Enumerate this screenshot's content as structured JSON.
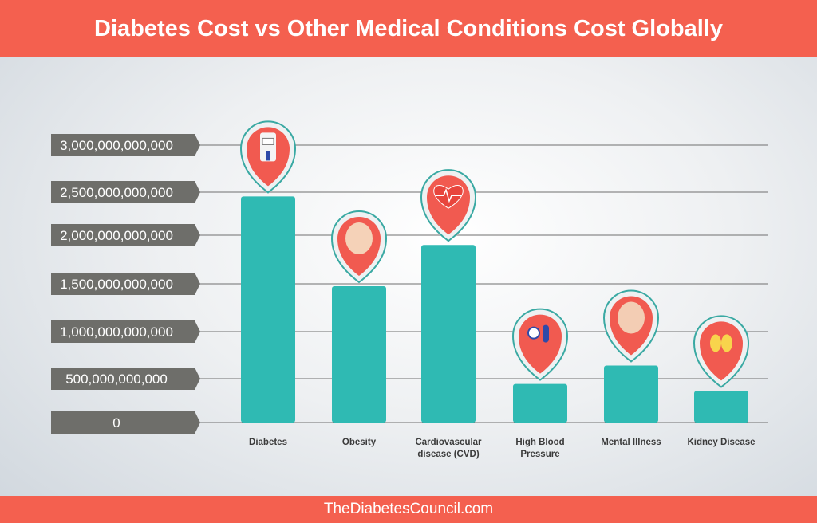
{
  "chart_data": {
    "type": "bar",
    "title": "Diabetes Cost vs Other Medical Conditions Cost Globally",
    "categories": [
      [
        "Diabetes"
      ],
      [
        "Obesity"
      ],
      [
        "Cardiovascular",
        "disease (CVD)"
      ],
      [
        "High Blood",
        "Pressure"
      ],
      [
        "Mental Illness"
      ],
      [
        "Kidney Disease"
      ]
    ],
    "values": [
      2450000000000,
      1475000000000,
      1900000000000,
      440000000000,
      640000000000,
      360000000000
    ],
    "icons": [
      "glucose-meter-icon",
      "obese-person-icon",
      "heart-pulse-icon",
      "blood-pressure-icon",
      "brain-icon",
      "kidney-icon"
    ],
    "yticks": [
      "0",
      "500,000,000,000",
      "1,000,000,000,000",
      "1,500,000,000,000",
      "2,000,000,000,000",
      "2,500,000,000,000",
      "3,000,000,000,000"
    ],
    "ylim": [
      0,
      3000000000000
    ],
    "grid": true,
    "colors": {
      "bar": "#2fbab3",
      "accent": "#f4604f",
      "tick_box": "#6e6e6a",
      "pin_ring": "#3aa9a3"
    }
  },
  "footer": "TheDiabetesCouncil.com"
}
